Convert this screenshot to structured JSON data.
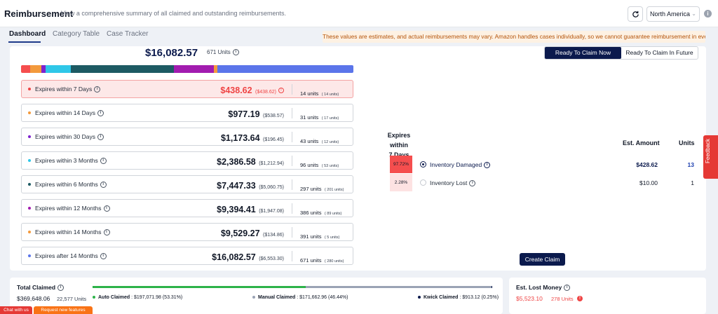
{
  "header": {
    "title": "Reimbursement",
    "subtitle": "View a comprehensive summary of all claimed and outstanding reimbursements.",
    "region": "North America"
  },
  "tabs": [
    {
      "label": "Dashboard",
      "active": true
    },
    {
      "label": "Category Table",
      "active": false
    },
    {
      "label": "Case Tracker",
      "active": false
    }
  ],
  "warning": "These values are estimates, and actual reimbursements may vary. Amazon handles cases individually, so we cannot guarantee reimbursement in every case.",
  "summary": {
    "total": "$16,082.57",
    "units": "671 Units"
  },
  "stack_bar": [
    {
      "color": "#f54e4e",
      "fraction": 0.027
    },
    {
      "color": "#f39a3c",
      "fraction": 0.034
    },
    {
      "color": "#7e22ce",
      "fraction": 0.012
    },
    {
      "color": "#2fc7e8",
      "fraction": 0.076
    },
    {
      "color": "#1d5a63",
      "fraction": 0.31
    },
    {
      "color": "#a21caf",
      "fraction": 0.122
    },
    {
      "color": "#f39a3c",
      "fraction": 0.009
    },
    {
      "color": "#5b75ea",
      "fraction": 0.41
    }
  ],
  "expirations": [
    {
      "label": "Expires within 7 Days",
      "amount": "$438.62",
      "sub_amount": "($438.62)",
      "units": "14 units",
      "units_sub": "( 14 units)",
      "dot_color": "#ef4444",
      "selected": true
    },
    {
      "label": "Expires within 14 Days",
      "amount": "$977.19",
      "sub_amount": "($538.57)",
      "units": "31 units",
      "units_sub": "( 17 units)",
      "dot_color": "#f39a3c",
      "selected": false
    },
    {
      "label": "Expires within 30 Days",
      "amount": "$1,173.64",
      "sub_amount": "($196.45)",
      "units": "43 units",
      "units_sub": "( 12 units)",
      "dot_color": "#7e22ce",
      "selected": false
    },
    {
      "label": "Expires within 3 Months",
      "amount": "$2,386.58",
      "sub_amount": "($1,212.94)",
      "units": "96 units",
      "units_sub": "( 53 units)",
      "dot_color": "#2fc7e8",
      "selected": false
    },
    {
      "label": "Expires within 6 Months",
      "amount": "$7,447.33",
      "sub_amount": "($5,060.75)",
      "units": "297 units",
      "units_sub": "( 201 units)",
      "dot_color": "#1d5a63",
      "selected": false
    },
    {
      "label": "Expires within 12 Months",
      "amount": "$9,394.41",
      "sub_amount": "($1,947.08)",
      "units": "386 units",
      "units_sub": "( 89 units)",
      "dot_color": "#a21caf",
      "selected": false
    },
    {
      "label": "Expires within 14 Months",
      "amount": "$9,529.27",
      "sub_amount": "($134.86)",
      "units": "391 units",
      "units_sub": "( 5 units)",
      "dot_color": "#f39a3c",
      "selected": false
    },
    {
      "label": "Expires after 14 Months",
      "amount": "$16,082.57",
      "sub_amount": "($6,553.30)",
      "units": "671 units",
      "units_sub": "( 280 units)",
      "dot_color": "#5b75ea",
      "selected": false
    }
  ],
  "toggle": {
    "now": "Ready To Claim Now",
    "future": "Ready To Claim In Future"
  },
  "detail": {
    "heading_line1": "Expires within",
    "heading_line2": "7 Days",
    "col_amount": "Est. Amount",
    "col_units": "Units",
    "rows": [
      {
        "pct": "97.72%",
        "pct_color": "#f54e4e",
        "reason": "Inventory Damaged",
        "amount": "$428.62",
        "units": "13",
        "selected": true
      },
      {
        "pct": "2.28%",
        "pct_color": "#fde2e2",
        "reason": "Inventory Lost",
        "amount": "$10.00",
        "units": "1",
        "selected": false
      }
    ],
    "create_label": "Create Claim"
  },
  "feedback_label": "Feedback",
  "total_claimed": {
    "title": "Total Claimed",
    "amount": "$369,648.06",
    "units": "22,577 Units",
    "bar": [
      {
        "color": "#2db34a",
        "fraction": 0.5331
      },
      {
        "color": "#9aa3b5",
        "fraction": 0.4644
      },
      {
        "color": "#0b1a4d",
        "fraction": 0.0025
      }
    ],
    "legend": [
      {
        "name": "Auto Claimed",
        "value": ": $197,071.98 (53.31%)",
        "color": "#2db34a"
      },
      {
        "name": "Manual Claimed",
        "value": ": $171,662.96 (46.44%)",
        "color": "#9aa3b5"
      },
      {
        "name": "Kwick Claimed",
        "value": ": $913.12 (0.25%)",
        "color": "#0b1a4d"
      }
    ]
  },
  "lost_money": {
    "title": "Est. Lost Money",
    "amount": "$5,523.10",
    "units": "278 Units"
  },
  "chat_label": "Chat with us",
  "request_label": "Request new features"
}
